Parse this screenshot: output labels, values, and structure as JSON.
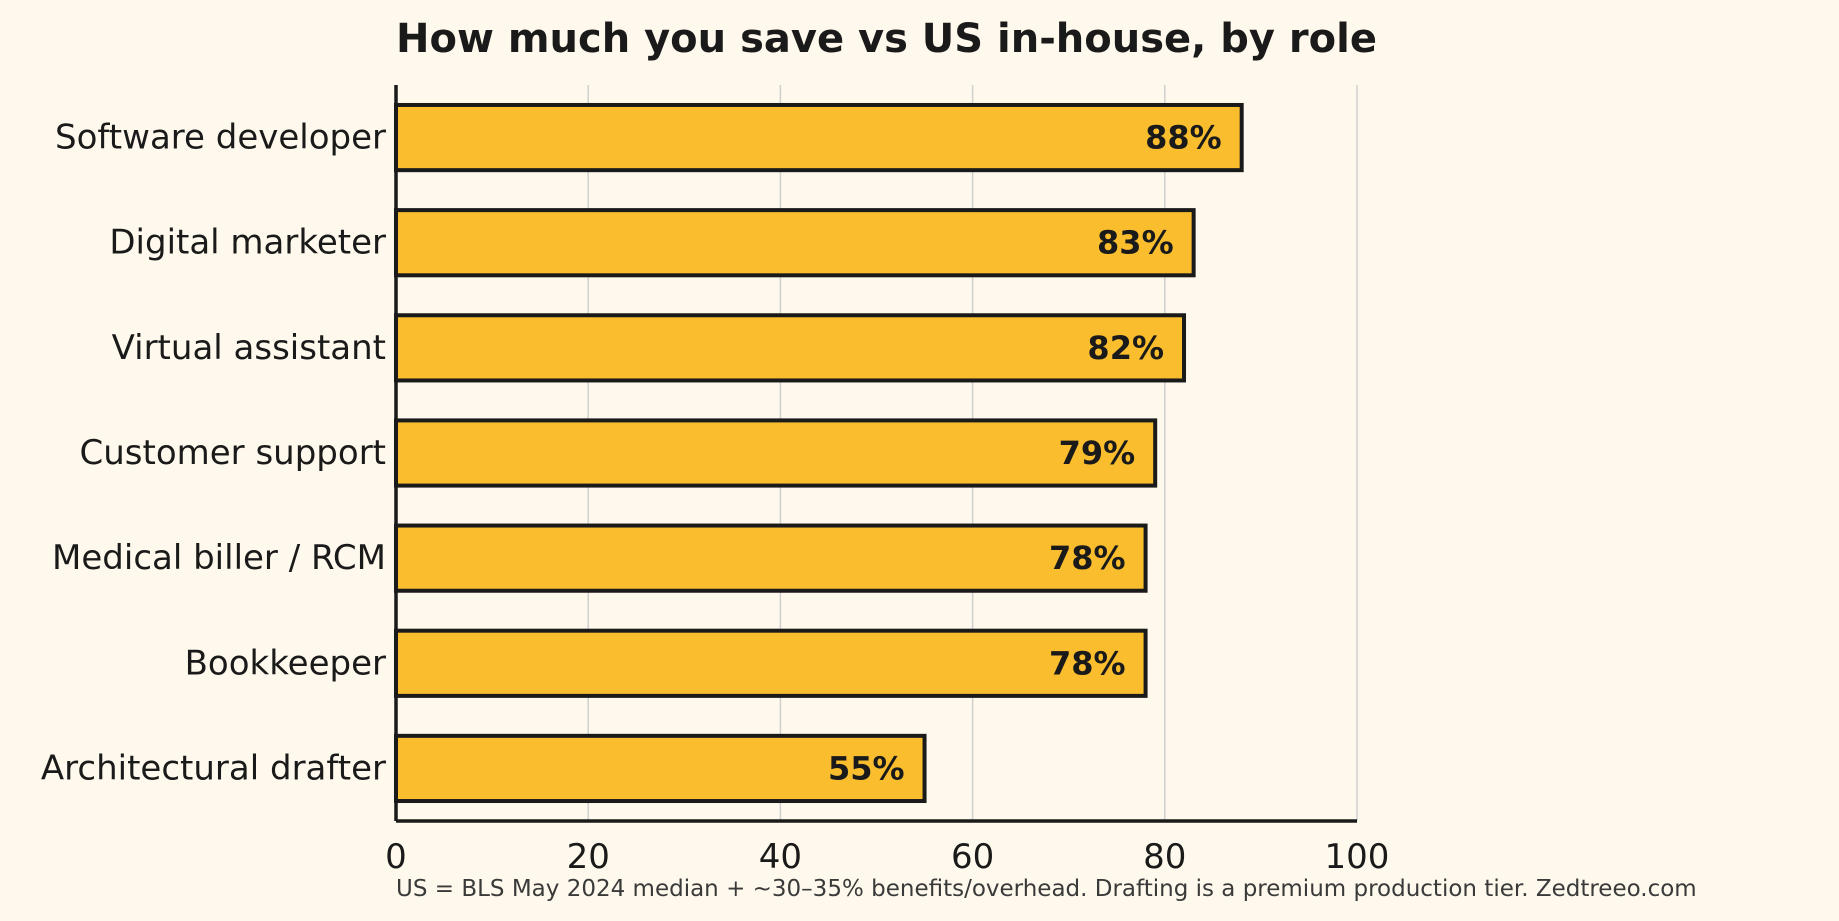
{
  "chart_data": {
    "type": "bar",
    "orientation": "horizontal",
    "title": "How much you save vs US in-house, by role",
    "xlabel": "",
    "ylabel": "",
    "categories": [
      "Software developer",
      "Digital marketer",
      "Virtual assistant",
      "Customer support",
      "Medical biller / RCM",
      "Bookkeeper",
      "Architectural drafter"
    ],
    "values": [
      88,
      83,
      82,
      79,
      78,
      78,
      55
    ],
    "value_labels": [
      "88%",
      "83%",
      "82%",
      "79%",
      "78%",
      "78%",
      "55%"
    ],
    "xlim": [
      0,
      100
    ],
    "xticks": [
      0,
      20,
      40,
      60,
      80,
      100
    ],
    "grid": "vertical",
    "footnote": "US = BLS May 2024 median + ~30–35% benefits/overhead. Drafting is a premium production tier.  Zedtreeo.com",
    "colors": {
      "background": "#fef9ec",
      "bar_fill": "#f9bd2e",
      "bar_stroke": "#1a1a1a",
      "gridline": "#cfcfcf",
      "axis": "#1a1a1a"
    }
  }
}
